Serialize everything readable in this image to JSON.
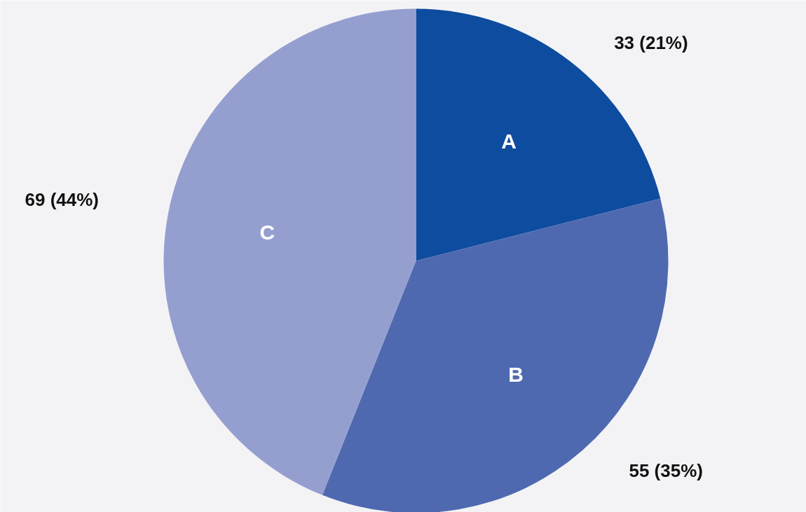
{
  "chart_data": {
    "type": "pie",
    "categories": [
      "A",
      "B",
      "C"
    ],
    "values": [
      33,
      55,
      69
    ],
    "colors": [
      "#0d4c9f",
      "#4f69b0",
      "#959fcf"
    ],
    "value_labels": [
      "33 (21%)",
      "55 (35%)",
      "69 (44%)"
    ]
  }
}
